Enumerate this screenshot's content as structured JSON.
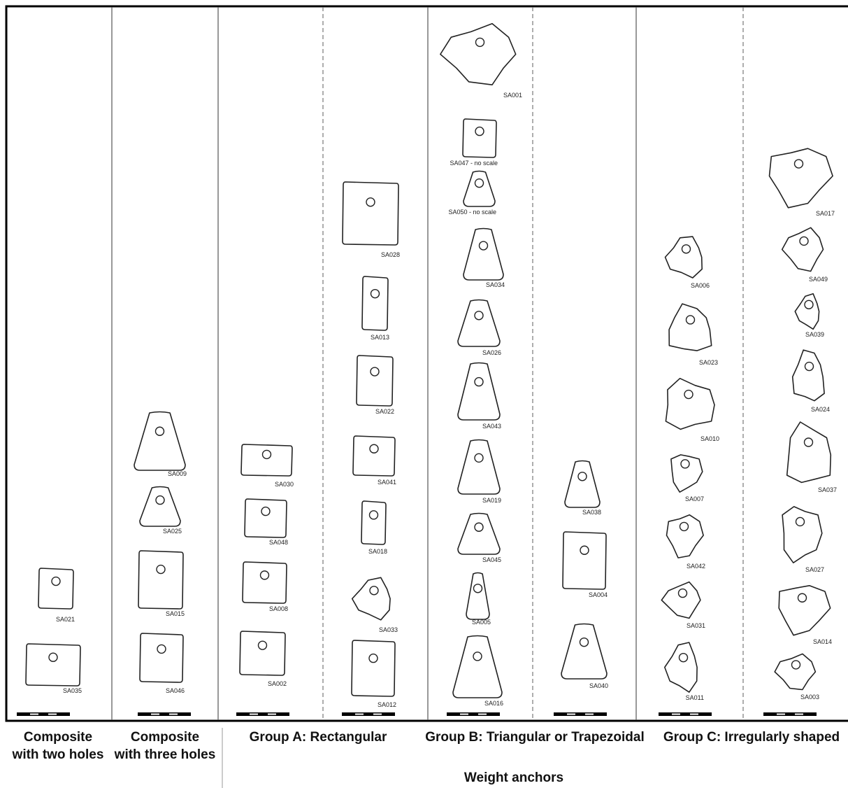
{
  "columns": [
    {
      "items": [
        "SA021",
        "SA035"
      ]
    },
    {
      "items": [
        "SA009",
        "SA025",
        "SA015",
        "SA046"
      ]
    },
    {
      "items": [
        "SA030",
        "SA048",
        "SA008",
        "SA002"
      ]
    },
    {
      "items": [
        "SA028",
        "SA013",
        "SA022",
        "SA041",
        "SA018",
        "SA033",
        "SA012"
      ]
    },
    {
      "items": [
        "SA001",
        "SA047 - no scale",
        "SA050 - no scale",
        "SA034",
        "SA026",
        "SA043",
        "SA019",
        "SA045",
        "SA005",
        "SA016"
      ]
    },
    {
      "items": [
        "SA038",
        "SA004",
        "SA040"
      ]
    },
    {
      "items": [
        "SA006",
        "SA023",
        "SA010",
        "SA007",
        "SA042",
        "SA031",
        "SA011"
      ]
    },
    {
      "items": [
        "SA017",
        "SA049",
        "SA039",
        "SA024",
        "SA037",
        "SA027",
        "SA014",
        "SA003"
      ]
    }
  ],
  "captions": [
    {
      "lines": [
        "Composite",
        "with two holes"
      ]
    },
    {
      "lines": [
        "Composite",
        "with three holes"
      ]
    },
    {
      "lines": [
        "Group A: Rectangular"
      ]
    },
    {
      "lines": [
        "Group B: Triangular or Trapezoidal"
      ]
    },
    {
      "lines": [
        "Group C: Irregularly shaped"
      ]
    }
  ],
  "footer": "Weight anchors"
}
